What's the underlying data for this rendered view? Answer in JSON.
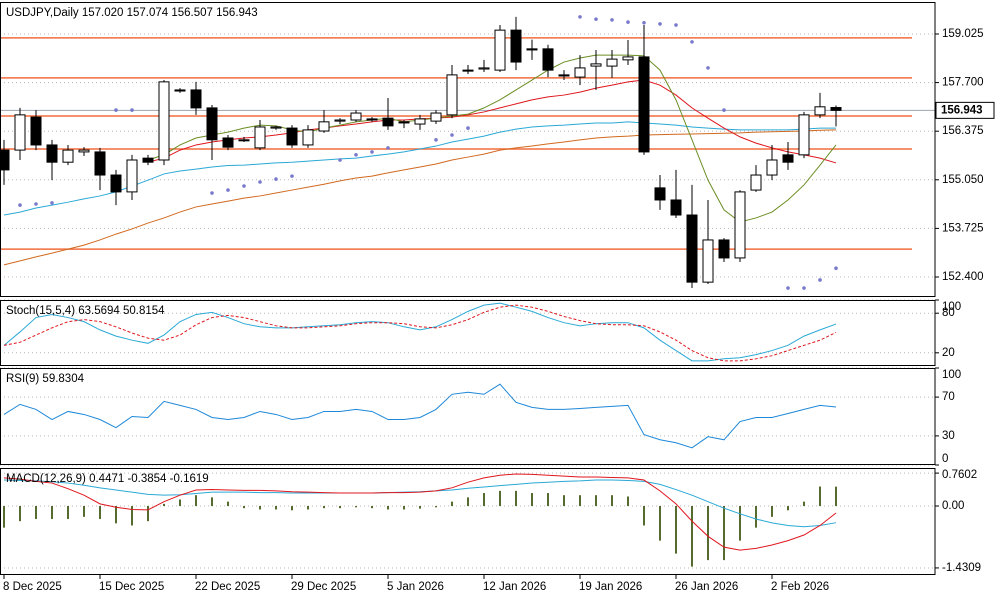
{
  "chart_data": [
    {
      "type": "candlestick",
      "title": "USDJPY,Daily  157.020 157.074 156.507 156.943",
      "up_color": "#ffffff",
      "down_color": "#000000",
      "open": [
        155.86,
        155.86,
        156.76,
        156.0,
        155.53,
        155.81,
        155.81,
        155.18,
        154.72,
        155.64,
        155.59,
        157.5,
        157.5,
        157.01,
        156.19,
        156.14,
        155.92,
        156.46,
        156.46,
        156.0,
        156.38,
        156.65,
        156.68,
        156.71,
        156.73,
        156.63,
        156.57,
        156.65,
        156.82,
        158.04,
        158.07,
        158.04,
        159.13,
        158.62,
        158.62,
        157.91,
        157.85,
        158.15,
        158.15,
        158.32,
        158.4,
        154.83,
        154.5,
        154.09,
        152.26,
        153.41,
        152.92,
        154.77,
        155.18,
        155.73,
        155.73,
        156.82,
        157.02
      ],
      "high": [
        156.14,
        157.01,
        156.95,
        156.14,
        156.0,
        155.94,
        155.92,
        155.32,
        155.73,
        155.73,
        157.77,
        157.55,
        157.72,
        157.09,
        156.27,
        156.22,
        156.68,
        156.52,
        156.54,
        156.54,
        156.95,
        156.73,
        156.95,
        156.76,
        157.28,
        156.68,
        156.82,
        156.95,
        158.18,
        158.18,
        158.32,
        159.27,
        159.49,
        158.87,
        158.73,
        158.04,
        158.45,
        158.59,
        158.59,
        158.86,
        159.27,
        155.18,
        155.32,
        154.91,
        154.5,
        153.46,
        154.77,
        155.45,
        156.0,
        156.08,
        156.9,
        157.42,
        157.074
      ],
      "low": [
        154.91,
        155.59,
        155.86,
        155.04,
        155.45,
        155.7,
        154.77,
        154.36,
        154.5,
        155.45,
        155.45,
        157.42,
        156.82,
        155.59,
        155.86,
        156.08,
        155.86,
        156.41,
        155.92,
        155.92,
        156.33,
        156.57,
        156.63,
        156.63,
        156.41,
        156.46,
        156.41,
        156.57,
        156.73,
        157.93,
        157.99,
        157.99,
        158.04,
        158.32,
        157.85,
        157.77,
        157.63,
        157.5,
        157.83,
        158.18,
        155.73,
        154.23,
        154.01,
        152.1,
        152.21,
        152.81,
        152.81,
        154.72,
        155.04,
        155.32,
        155.64,
        156.73,
        156.507
      ],
      "close": [
        155.32,
        156.82,
        156.0,
        155.53,
        155.86,
        155.86,
        155.18,
        154.72,
        155.59,
        155.53,
        157.72,
        157.47,
        157.01,
        156.14,
        155.94,
        156.14,
        156.49,
        156.49,
        156.0,
        156.41,
        156.63,
        156.68,
        156.87,
        156.68,
        156.52,
        156.6,
        156.71,
        156.87,
        157.91,
        158.04,
        158.1,
        159.13,
        158.26,
        158.59,
        158.04,
        157.88,
        158.1,
        158.21,
        158.34,
        158.4,
        155.81,
        154.5,
        154.09,
        152.26,
        153.41,
        152.92,
        154.72,
        155.18,
        155.59,
        155.53,
        156.82,
        157.04,
        156.943
      ],
      "lines": [
        {
          "color": "#2aa9d6",
          "values": [
            154.09,
            154.17,
            154.28,
            154.36,
            154.44,
            154.53,
            154.61,
            154.72,
            154.88,
            155.04,
            155.21,
            155.29,
            155.34,
            155.4,
            155.44,
            155.45,
            155.48,
            155.51,
            155.53,
            155.56,
            155.59,
            155.62,
            155.64,
            155.7,
            155.75,
            155.81,
            155.89,
            155.97,
            156.08,
            156.16,
            156.24,
            156.35,
            156.43,
            156.49,
            156.52,
            156.54,
            156.57,
            156.6,
            156.6,
            156.63,
            156.6,
            156.57,
            156.54,
            156.49,
            156.46,
            156.43,
            156.41,
            156.41,
            156.41,
            156.41,
            156.43,
            156.46,
            156.46
          ]
        },
        {
          "color": "#d2691e",
          "values": [
            152.73,
            152.84,
            152.95,
            153.05,
            153.16,
            153.27,
            153.41,
            153.57,
            153.71,
            153.87,
            154.01,
            154.17,
            154.31,
            154.39,
            154.47,
            154.55,
            154.61,
            154.69,
            154.77,
            154.85,
            154.93,
            155.02,
            155.1,
            155.15,
            155.24,
            155.32,
            155.4,
            155.48,
            155.59,
            155.67,
            155.75,
            155.86,
            155.92,
            155.97,
            156.03,
            156.08,
            156.14,
            156.19,
            156.22,
            156.24,
            156.27,
            156.28,
            156.29,
            156.3,
            156.31,
            156.32,
            156.33,
            156.35,
            156.36,
            156.37,
            156.38,
            156.4,
            156.41
          ]
        },
        {
          "color": "#e0161d",
          "values": [
            null,
            null,
            null,
            null,
            null,
            null,
            null,
            null,
            null,
            155.53,
            155.64,
            155.86,
            156.0,
            156.08,
            156.14,
            156.19,
            156.22,
            156.27,
            156.33,
            156.41,
            156.46,
            156.52,
            156.57,
            156.63,
            156.68,
            156.68,
            156.71,
            156.73,
            156.76,
            156.82,
            156.9,
            157.01,
            157.12,
            157.23,
            157.31,
            157.36,
            157.44,
            157.55,
            157.63,
            157.72,
            157.77,
            157.63,
            157.36,
            157.01,
            156.73,
            156.46,
            156.22,
            156.05,
            155.92,
            155.81,
            155.73,
            155.64,
            155.51
          ]
        },
        {
          "color": "#6b8e23",
          "values": [
            null,
            null,
            null,
            null,
            null,
            null,
            null,
            null,
            null,
            155.59,
            155.73,
            156.0,
            156.19,
            156.27,
            156.35,
            156.46,
            156.54,
            156.52,
            156.41,
            156.35,
            156.46,
            156.54,
            156.63,
            156.68,
            156.73,
            156.63,
            156.68,
            156.73,
            156.79,
            156.84,
            157.01,
            157.23,
            157.5,
            157.77,
            158.04,
            158.26,
            158.37,
            158.45,
            158.45,
            158.45,
            158.43,
            158.04,
            157.23,
            156.14,
            155.04,
            154.23,
            153.9,
            154.01,
            154.17,
            154.5,
            154.91,
            155.45,
            156.0
          ]
        }
      ],
      "sar": {
        "color": "#7a7acd",
        "values": [
          null,
          154.36,
          154.39,
          154.42,
          null,
          null,
          null,
          156.95,
          156.95,
          null,
          null,
          null,
          null,
          154.69,
          154.77,
          154.88,
          154.99,
          155.07,
          155.15,
          null,
          null,
          155.59,
          155.73,
          155.81,
          155.92,
          null,
          null,
          156.14,
          156.27,
          156.46,
          null,
          null,
          null,
          null,
          null,
          null,
          159.49,
          159.43,
          159.41,
          159.35,
          159.33,
          159.3,
          159.27,
          158.81,
          158.1,
          156.95,
          null,
          null,
          null,
          152.1,
          152.1,
          152.32,
          152.64
        ]
      },
      "levels": {
        "color": "#f26d3d",
        "values": [
          158.92,
          157.83,
          156.79,
          155.89,
          153.16
        ]
      },
      "current_price": {
        "value": 156.943,
        "label": "156.943"
      },
      "ylim": [
        151.855,
        159.897
      ],
      "yticks": [
        159.025,
        {
          "value": 157.7,
          "label": "157.700"
        },
        156.375,
        {
          "value": 155.05,
          "label": "155.050"
        },
        153.725,
        {
          "value": 152.4,
          "label": "152.400"
        }
      ],
      "grid": true
    },
    {
      "type": "line",
      "title": "Stoch(15,5,4) 63.5694 50.8154",
      "series": [
        {
          "color": "#2aa9d6",
          "values": [
            31.3,
            51.6,
            73.4,
            78.1,
            73.4,
            67.2,
            54.7,
            45.3,
            39.1,
            34.4,
            46.9,
            67.2,
            78.1,
            81.3,
            73.4,
            64.1,
            59.4,
            57.8,
            57.8,
            59.4,
            60.9,
            62.5,
            65.6,
            67.2,
            65.6,
            59.4,
            54.7,
            59.4,
            70.3,
            82.8,
            92.2,
            95.3,
            89.1,
            82.8,
            73.4,
            65.6,
            60.9,
            64.1,
            65.6,
            65.6,
            57.8,
            39.1,
            23.4,
            7.8,
            7.8,
            10.9,
            12.5,
            17.2,
            23.4,
            31.3,
            45.3,
            54.7,
            63.5694
          ]
        },
        {
          "color": "#e0161d",
          "dashed": true,
          "values": [
            31.3,
            35.9,
            46.9,
            57.8,
            67.2,
            70.3,
            67.2,
            59.4,
            50.0,
            42.2,
            39.1,
            46.9,
            62.5,
            73.4,
            76.6,
            73.4,
            67.2,
            60.9,
            57.8,
            57.8,
            59.4,
            60.9,
            64.1,
            65.6,
            65.6,
            64.1,
            59.4,
            57.8,
            62.5,
            70.3,
            81.3,
            89.1,
            92.2,
            89.1,
            82.8,
            75.0,
            68.8,
            64.1,
            62.5,
            62.5,
            60.9,
            51.6,
            39.1,
            23.4,
            12.5,
            7.8,
            7.8,
            10.9,
            15.6,
            23.4,
            31.3,
            39.1,
            50.8154
          ]
        }
      ],
      "ylim": [
        0,
        100
      ],
      "yticks": [
        100,
        80,
        20
      ],
      "grid": true
    },
    {
      "type": "line",
      "title": "RSI(9) 59.8304",
      "series": [
        {
          "color": "#1e88d8",
          "values": [
            52.1,
            62.5,
            57.3,
            46.9,
            55.2,
            52.1,
            46.9,
            38.5,
            50.0,
            49.0,
            65.6,
            61.5,
            57.3,
            49.0,
            46.9,
            49.0,
            55.2,
            52.1,
            46.9,
            49.0,
            55.2,
            55.2,
            57.3,
            55.2,
            46.9,
            46.9,
            49.0,
            57.3,
            72.9,
            75.0,
            72.9,
            83.3,
            64.6,
            59.4,
            57.3,
            57.3,
            58.3,
            59.4,
            60.4,
            61.5,
            31.3,
            26.0,
            22.9,
            17.7,
            29.2,
            26.0,
            44.8,
            49.0,
            49.0,
            53.1,
            57.3,
            61.5,
            59.8304
          ]
        }
      ],
      "ylim": [
        0,
        100
      ],
      "yticks": [
        100,
        70,
        30,
        0
      ],
      "grid": true
    },
    {
      "type": "combo",
      "title": "MACD(12,26,9) 0.4471 -0.3854 -0.1619",
      "categories": [
        "8 Dec 2025",
        null,
        null,
        null,
        null,
        null,
        "15 Dec 2025",
        null,
        null,
        null,
        null,
        null,
        "22 Dec 2025",
        null,
        null,
        null,
        null,
        null,
        "29 Dec 2025",
        null,
        null,
        null,
        null,
        null,
        "5 Jan 2026",
        null,
        null,
        null,
        null,
        null,
        "12 Jan 2026",
        null,
        null,
        null,
        null,
        null,
        "19 Jan 2026",
        null,
        null,
        null,
        null,
        null,
        "26 Jan 2026",
        null,
        null,
        null,
        null,
        null,
        "2 Feb 2026",
        null,
        null,
        null,
        null
      ],
      "histogram": {
        "color": "#556b2f",
        "values": [
          -0.5,
          -0.35,
          -0.3,
          -0.3,
          -0.3,
          -0.25,
          -0.3,
          -0.4,
          -0.45,
          -0.35,
          0.05,
          0.15,
          0.25,
          0.2,
          0.1,
          -0.05,
          -0.08,
          -0.08,
          -0.1,
          -0.08,
          -0.05,
          -0.05,
          -0.03,
          -0.05,
          -0.08,
          -0.08,
          -0.06,
          -0.03,
          0.1,
          0.2,
          0.3,
          0.35,
          0.35,
          0.3,
          0.3,
          0.25,
          0.25,
          0.25,
          0.25,
          0.22,
          -0.45,
          -0.8,
          -1.1,
          -1.4,
          -1.25,
          -1.25,
          -0.8,
          -0.5,
          -0.25,
          -0.1,
          0.1,
          0.45,
          0.4471
        ]
      },
      "series": [
        {
          "color": "#2aa9d6",
          "values": [
            0.6,
            0.59,
            0.58,
            0.56,
            0.53,
            0.48,
            0.42,
            0.37,
            0.32,
            0.27,
            0.25,
            0.26,
            0.29,
            0.32,
            0.32,
            0.32,
            0.31,
            0.31,
            0.3,
            0.3,
            0.3,
            0.3,
            0.3,
            0.3,
            0.31,
            0.32,
            0.33,
            0.35,
            0.37,
            0.41,
            0.44,
            0.47,
            0.5,
            0.53,
            0.55,
            0.57,
            0.58,
            0.6,
            0.6,
            0.59,
            0.57,
            0.5,
            0.38,
            0.25,
            0.1,
            -0.05,
            -0.18,
            -0.3,
            -0.39,
            -0.45,
            -0.48,
            -0.45,
            -0.3854
          ]
        },
        {
          "color": "#e0161d",
          "values": [
            0.65,
            0.62,
            0.57,
            0.53,
            0.4,
            0.25,
            0.05,
            -0.03,
            -0.08,
            -0.09,
            0.1,
            0.25,
            0.37,
            0.38,
            0.37,
            0.36,
            0.36,
            0.35,
            0.33,
            0.32,
            0.31,
            0.3,
            0.3,
            0.3,
            0.31,
            0.31,
            0.32,
            0.35,
            0.42,
            0.55,
            0.65,
            0.71,
            0.74,
            0.73,
            0.71,
            0.69,
            0.67,
            0.67,
            0.66,
            0.65,
            0.6,
            0.35,
            0.05,
            -0.35,
            -0.7,
            -0.95,
            -1.02,
            -0.98,
            -0.9,
            -0.8,
            -0.67,
            -0.45,
            -0.1619
          ]
        }
      ],
      "ylim": [
        -1.594,
        0.878
      ],
      "yticks": [
        0.7602,
        {
          "value": 0,
          "label": "0.00"
        },
        -1.4309
      ],
      "grid": true
    }
  ]
}
